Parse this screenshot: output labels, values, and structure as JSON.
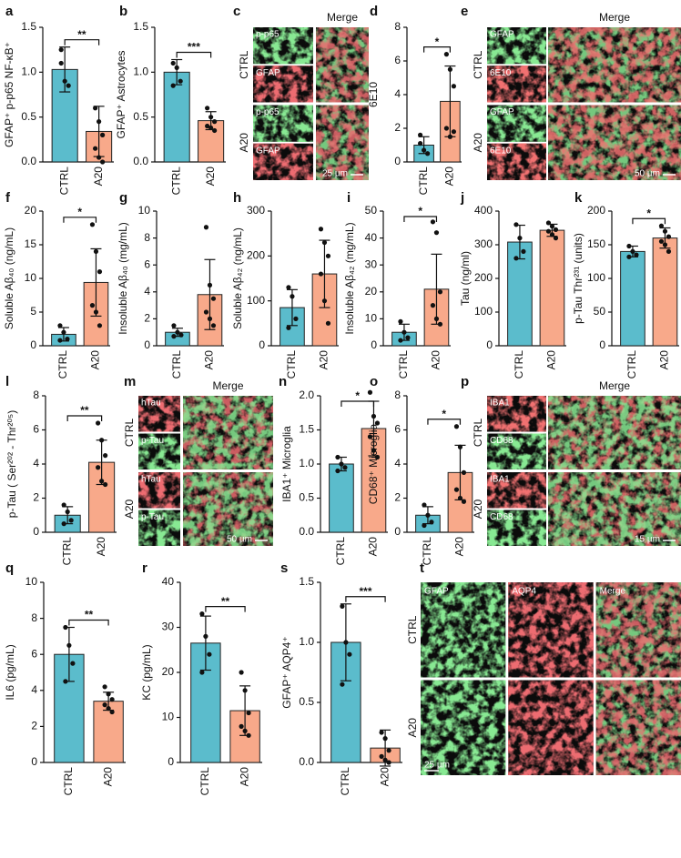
{
  "chart_data": [
    {
      "type": "bar",
      "panel": "a",
      "ylabel": "GFAP⁺ p-p65 NF-κB⁺",
      "categories": [
        "CTRL",
        "A20"
      ],
      "colors": [
        "#5bbccc",
        "#f8a98a"
      ],
      "values": [
        1.03,
        0.34
      ],
      "errors": [
        0.25,
        0.28
      ],
      "points": [
        [
          1.25,
          0.9,
          0.85,
          1.1
        ],
        [
          0.6,
          0.45,
          0.3,
          0.15,
          0.05,
          0.0
        ]
      ],
      "ylim": [
        0,
        1.5
      ],
      "yticks": [
        {
          "value": 0,
          "label": "0.0"
        },
        {
          "value": 0.5,
          "label": "0.5"
        },
        {
          "value": 1,
          "label": "1.0"
        },
        {
          "value": 1.5,
          "label": "1.5"
        }
      ],
      "significance": "**"
    },
    {
      "type": "bar",
      "panel": "b",
      "ylabel": "GFAP⁺ Astrocytes",
      "categories": [
        "CTRL",
        "A20"
      ],
      "colors": [
        "#5bbccc",
        "#f8a98a"
      ],
      "values": [
        1.0,
        0.46
      ],
      "errors": [
        0.14,
        0.1
      ],
      "points": [
        [
          1.1,
          1.05,
          0.9,
          0.85
        ],
        [
          0.6,
          0.5,
          0.45,
          0.4,
          0.38,
          0.35
        ]
      ],
      "ylim": [
        0,
        1.5
      ],
      "yticks": [
        {
          "value": 0,
          "label": "0.0"
        },
        {
          "value": 0.5,
          "label": "0.5"
        },
        {
          "value": 1,
          "label": "1.0"
        },
        {
          "value": 1.5,
          "label": "1.5"
        }
      ],
      "significance": "***"
    },
    {
      "type": "bar",
      "panel": "d",
      "ylabel": "6E10",
      "categories": [
        "CTRL",
        "A20"
      ],
      "colors": [
        "#5bbccc",
        "#f8a98a"
      ],
      "values": [
        1.0,
        3.6
      ],
      "errors": [
        0.5,
        2.1
      ],
      "points": [
        [
          1.6,
          0.7,
          0.5,
          1.1
        ],
        [
          6.4,
          5.5,
          4.5,
          2.0,
          1.5,
          1.8
        ]
      ],
      "ylim": [
        0,
        8
      ],
      "yticks": [
        0,
        2,
        4,
        6,
        8
      ],
      "significance": "*"
    },
    {
      "type": "bar",
      "panel": "f",
      "ylabel": "Soluble Aβ₄₀ (ng/mL)",
      "categories": [
        "CTRL",
        "A20"
      ],
      "colors": [
        "#5bbccc",
        "#f8a98a"
      ],
      "values": [
        1.7,
        9.4
      ],
      "errors": [
        1.0,
        5.0
      ],
      "points": [
        [
          3,
          2,
          1,
          0.8
        ],
        [
          18,
          14,
          11,
          6,
          5,
          3
        ]
      ],
      "ylim": [
        0,
        20
      ],
      "yticks": [
        0,
        5,
        10,
        15,
        20
      ],
      "significance": "*"
    },
    {
      "type": "bar",
      "panel": "g",
      "ylabel": "Insoluble Aβ₄₀ (mg/mL)",
      "categories": [
        "CTRL",
        "A20"
      ],
      "colors": [
        "#5bbccc",
        "#f8a98a"
      ],
      "values": [
        1.0,
        3.8
      ],
      "errors": [
        0.3,
        2.6
      ],
      "points": [
        [
          1.5,
          1,
          0.8,
          0.7
        ],
        [
          8.8,
          4.5,
          3.5,
          2.5,
          2,
          1.5
        ]
      ],
      "ylim": [
        0,
        10
      ],
      "yticks": [
        0,
        2,
        4,
        6,
        8,
        10
      ]
    },
    {
      "type": "bar",
      "panel": "h",
      "ylabel": "Soluble Aβ₄₂ (ng/mL)",
      "categories": [
        "CTRL",
        "A20"
      ],
      "colors": [
        "#5bbccc",
        "#f8a98a"
      ],
      "values": [
        85,
        160
      ],
      "errors": [
        40,
        75
      ],
      "points": [
        [
          130,
          110,
          60,
          40
        ],
        [
          260,
          230,
          200,
          160,
          100,
          50
        ]
      ],
      "ylim": [
        0,
        300
      ],
      "yticks": [
        0,
        100,
        200,
        300
      ]
    },
    {
      "type": "bar",
      "panel": "i",
      "ylabel": "Insoluble Aβ₄₂ (mg/mL)",
      "categories": [
        "CTRL",
        "A20"
      ],
      "colors": [
        "#5bbccc",
        "#f8a98a"
      ],
      "values": [
        5,
        21
      ],
      "errors": [
        3,
        13
      ],
      "points": [
        [
          9,
          5,
          3,
          2
        ],
        [
          46,
          42,
          20,
          15,
          10,
          8
        ]
      ],
      "ylim": [
        0,
        50
      ],
      "yticks": [
        0,
        10,
        20,
        30,
        40,
        50
      ],
      "significance": "*"
    },
    {
      "type": "bar",
      "panel": "j",
      "ylabel": "Tau (ng/ml)",
      "categories": [
        "CTRL",
        "A20"
      ],
      "colors": [
        "#5bbccc",
        "#f8a98a"
      ],
      "values": [
        308,
        343
      ],
      "errors": [
        50,
        18
      ],
      "points": [
        [
          360,
          320,
          280,
          260
        ],
        [
          365,
          355,
          345,
          340,
          330,
          320
        ]
      ],
      "ylim": [
        0,
        400
      ],
      "yticks": [
        0,
        100,
        200,
        300,
        400
      ]
    },
    {
      "type": "bar",
      "panel": "k",
      "ylabel": "p-Tau Thr²³¹ (units)",
      "categories": [
        "CTRL",
        "A20"
      ],
      "colors": [
        "#5bbccc",
        "#f8a98a"
      ],
      "values": [
        140,
        160
      ],
      "errors": [
        8,
        15
      ],
      "points": [
        [
          148,
          140,
          135,
          132
        ],
        [
          178,
          170,
          162,
          155,
          150,
          140
        ]
      ],
      "ylim": [
        0,
        200
      ],
      "yticks": [
        0,
        50,
        100,
        150,
        200
      ],
      "significance": "*"
    },
    {
      "type": "bar",
      "panel": "l",
      "ylabel": "p-Tau ( Ser²⁰² - Thr²⁰⁵)",
      "categories": [
        "CTRL",
        "A20"
      ],
      "colors": [
        "#5bbccc",
        "#f8a98a"
      ],
      "values": [
        1.0,
        4.1
      ],
      "errors": [
        0.5,
        1.3
      ],
      "points": [
        [
          1.6,
          1.2,
          0.7,
          0.5
        ],
        [
          6.4,
          5.4,
          4.5,
          3.8,
          3.0,
          2.8
        ]
      ],
      "ylim": [
        0,
        8
      ],
      "yticks": [
        0,
        2,
        4,
        6,
        8
      ],
      "significance": "**"
    },
    {
      "type": "bar",
      "panel": "n",
      "ylabel": "IBA1⁺ Microglia",
      "categories": [
        "CTRL",
        "A20"
      ],
      "colors": [
        "#5bbccc",
        "#f8a98a"
      ],
      "values": [
        1.0,
        1.52
      ],
      "errors": [
        0.1,
        0.4
      ],
      "points": [
        [
          1.1,
          1.0,
          0.95,
          0.9
        ],
        [
          2.05,
          1.7,
          1.6,
          1.4,
          1.2,
          1.1
        ]
      ],
      "ylim": [
        0,
        2
      ],
      "yticks": [
        {
          "value": 0,
          "label": "0.0"
        },
        {
          "value": 0.5,
          "label": "0.5"
        },
        {
          "value": 1,
          "label": "1.0"
        },
        {
          "value": 1.5,
          "label": "1.5"
        },
        {
          "value": 2,
          "label": "2.0"
        }
      ],
      "significance": "*"
    },
    {
      "type": "bar",
      "panel": "o",
      "ylabel": "CD68⁺ Microglia",
      "categories": [
        "CTRL",
        "A20"
      ],
      "colors": [
        "#5bbccc",
        "#f8a98a"
      ],
      "values": [
        1.0,
        3.5
      ],
      "errors": [
        0.5,
        1.6
      ],
      "points": [
        [
          1.6,
          1.0,
          0.6,
          0.4
        ],
        [
          6.2,
          5.0,
          3.5,
          2.5,
          2.0,
          1.8
        ]
      ],
      "ylim": [
        0,
        8
      ],
      "yticks": [
        0,
        2,
        4,
        6,
        8
      ],
      "significance": "*"
    },
    {
      "type": "bar",
      "panel": "q",
      "ylabel": "IL6 (pg/mL)",
      "categories": [
        "CTRL",
        "A20"
      ],
      "colors": [
        "#5bbccc",
        "#f8a98a"
      ],
      "values": [
        6.0,
        3.4
      ],
      "errors": [
        1.5,
        0.5
      ],
      "points": [
        [
          7.5,
          6.5,
          5.5,
          4.5
        ],
        [
          4.2,
          3.8,
          3.5,
          3.2,
          3.0,
          2.8
        ]
      ],
      "ylim": [
        0,
        10
      ],
      "yticks": [
        0,
        2,
        4,
        6,
        8,
        10
      ],
      "significance": "**"
    },
    {
      "type": "bar",
      "panel": "r",
      "ylabel": "KC (pg/mL)",
      "categories": [
        "CTRL",
        "A20"
      ],
      "colors": [
        "#5bbccc",
        "#f8a98a"
      ],
      "values": [
        26.5,
        11.5
      ],
      "errors": [
        6,
        5.5
      ],
      "points": [
        [
          33,
          28,
          24,
          20
        ],
        [
          20,
          16,
          11,
          8,
          7,
          6
        ]
      ],
      "ylim": [
        0,
        40
      ],
      "yticks": [
        0,
        10,
        20,
        30,
        40
      ],
      "significance": "**"
    },
    {
      "type": "bar",
      "panel": "s",
      "ylabel": "GFAP⁺ AQP4⁺",
      "categories": [
        "CTRL",
        "A20"
      ],
      "colors": [
        "#5bbccc",
        "#f8a98a"
      ],
      "values": [
        1.0,
        0.12
      ],
      "errors": [
        0.32,
        0.15
      ],
      "points": [
        [
          1.3,
          1.0,
          0.9,
          0.65
        ],
        [
          0.25,
          0.2,
          0.1,
          0.05,
          0.02,
          0.0
        ]
      ],
      "ylim": [
        0,
        1.5
      ],
      "yticks": [
        {
          "value": 0,
          "label": "0.0"
        },
        {
          "value": 0.5,
          "label": "0.5"
        },
        {
          "value": 1,
          "label": "1.0"
        },
        {
          "value": 1.5,
          "label": "1.5"
        }
      ],
      "significance": "***"
    }
  ],
  "images": [
    {
      "panel": "c",
      "merge_title": "Merge",
      "groups": [
        "CTRL",
        "A20"
      ],
      "channels": [
        "p-p65",
        "GFAP"
      ],
      "channel_colors": [
        "#3fd04a",
        "#d8262a"
      ],
      "scale_bar": "25 µm"
    },
    {
      "panel": "e",
      "merge_title": "Merge",
      "groups": [
        "CTRL",
        "A20"
      ],
      "channels": [
        "GFAP",
        "6E10"
      ],
      "channel_colors": [
        "#3fd04a",
        "#e02a2a"
      ],
      "scale_bar": "50 µm"
    },
    {
      "panel": "m",
      "merge_title": "Merge",
      "groups": [
        "CTRL",
        "A20"
      ],
      "channels": [
        "hTau",
        "p-Tau"
      ],
      "channel_colors": [
        "#d8262a",
        "#3fd04a"
      ],
      "scale_bar": "50 µm"
    },
    {
      "panel": "p",
      "merge_title": "Merge",
      "groups": [
        "CTRL",
        "A20"
      ],
      "channels": [
        "IBA1",
        "CD68"
      ],
      "channel_colors": [
        "#e02a2a",
        "#3fd04a"
      ],
      "scale_bar": "15 µm"
    },
    {
      "panel": "t",
      "layout": "columns",
      "merge_title": "Merge",
      "groups": [
        "CTRL",
        "A20"
      ],
      "channels": [
        "GFAP",
        "AQP4"
      ],
      "channel_colors": [
        "#3fd04a",
        "#d8262a"
      ],
      "scale_bar": "25 µm"
    }
  ]
}
